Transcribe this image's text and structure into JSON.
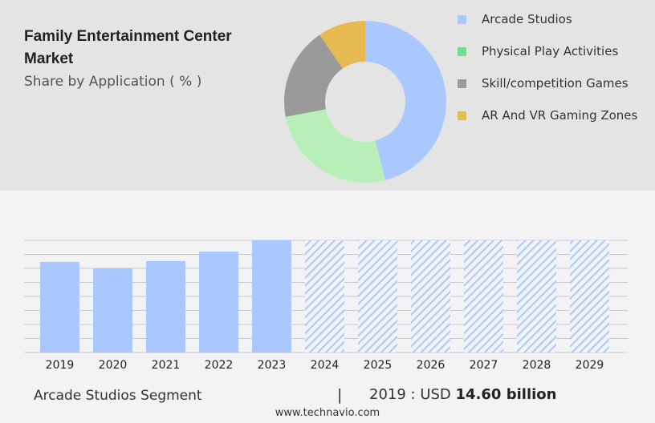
{
  "header": {
    "title": "Family Entertainment Center Market",
    "subtitle": "Share by Application ( % )"
  },
  "chart_data": [
    {
      "type": "pie",
      "donut": true,
      "labels": [
        "Arcade Studios",
        "Physical Play Activities",
        "Skill/competition Games",
        "AR And VR Gaming Zones"
      ],
      "values": [
        46,
        26,
        18.5,
        9.5
      ],
      "colors": [
        "#a8c8ff",
        "#b8efb8",
        "#9a9a9a",
        "#e6ba50"
      ],
      "legend_colors": [
        "#a8c8ff",
        "#6ee08e",
        "#9a9a9a",
        "#e0c050"
      ],
      "legend_placement": "right"
    },
    {
      "type": "bar",
      "categories": [
        "2019",
        "2020",
        "2021",
        "2022",
        "2023",
        "2024",
        "2025",
        "2026",
        "2027",
        "2028",
        "2029"
      ],
      "values": [
        14.6,
        13.57,
        14.73,
        16.28,
        18.09,
        null,
        null,
        null,
        null,
        null,
        null
      ],
      "forecast_categories": [
        "2024",
        "2025",
        "2026",
        "2027",
        "2028",
        "2029"
      ],
      "color": "#a8c8ff",
      "grid": true,
      "ylim": [
        0,
        18.09
      ]
    }
  ],
  "footer": {
    "segment": "Arcade Studios Segment",
    "separator": "|",
    "year_label": "2019 : USD",
    "value": "14.60 billion",
    "url": "www.technavio.com"
  }
}
